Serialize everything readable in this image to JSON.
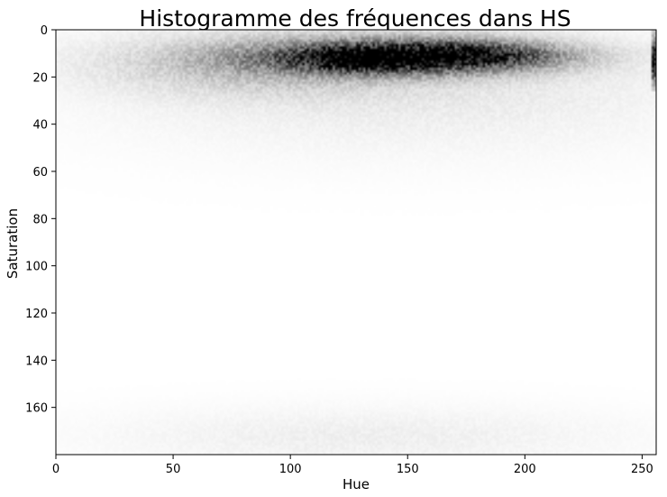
{
  "chart_data": {
    "type": "heatmap",
    "title": "Histogramme des fréquences dans HS",
    "xlabel": "Hue",
    "ylabel": "Saturation",
    "xlim": [
      0,
      256
    ],
    "ylim": [
      180,
      0
    ],
    "x_ticks": [
      0,
      50,
      100,
      150,
      200,
      250
    ],
    "y_ticks": [
      0,
      20,
      40,
      60,
      80,
      100,
      120,
      140,
      160
    ],
    "y_axis_inverted": true,
    "colormap": "Greys",
    "colormap_low": "#ffffff",
    "colormap_high": "#000000",
    "grid": false,
    "density_clusters": [
      {
        "hue_center": 148,
        "saturation_center": 11,
        "hue_spread": 38,
        "saturation_spread": 4.5,
        "relative_intensity": 1.0
      },
      {
        "hue_center": 128,
        "saturation_center": 12,
        "hue_spread": 14,
        "saturation_spread": 3.0,
        "relative_intensity": 0.5
      },
      {
        "hue_center": 178,
        "saturation_center": 10,
        "hue_spread": 22,
        "saturation_spread": 3.5,
        "relative_intensity": 0.35
      },
      {
        "hue_center": 95,
        "saturation_center": 14,
        "hue_spread": 45,
        "saturation_spread": 8,
        "relative_intensity": 0.18
      },
      {
        "hue_center": 150,
        "saturation_center": 20,
        "hue_spread": 80,
        "saturation_spread": 18,
        "relative_intensity": 0.05
      },
      {
        "hue_center": 130,
        "saturation_center": 172,
        "hue_spread": 70,
        "saturation_spread": 8,
        "relative_intensity": 0.03
      }
    ],
    "edge_feature": {
      "hue": 255,
      "saturation_range": [
        0,
        25
      ],
      "relative_intensity": 0.9
    }
  }
}
